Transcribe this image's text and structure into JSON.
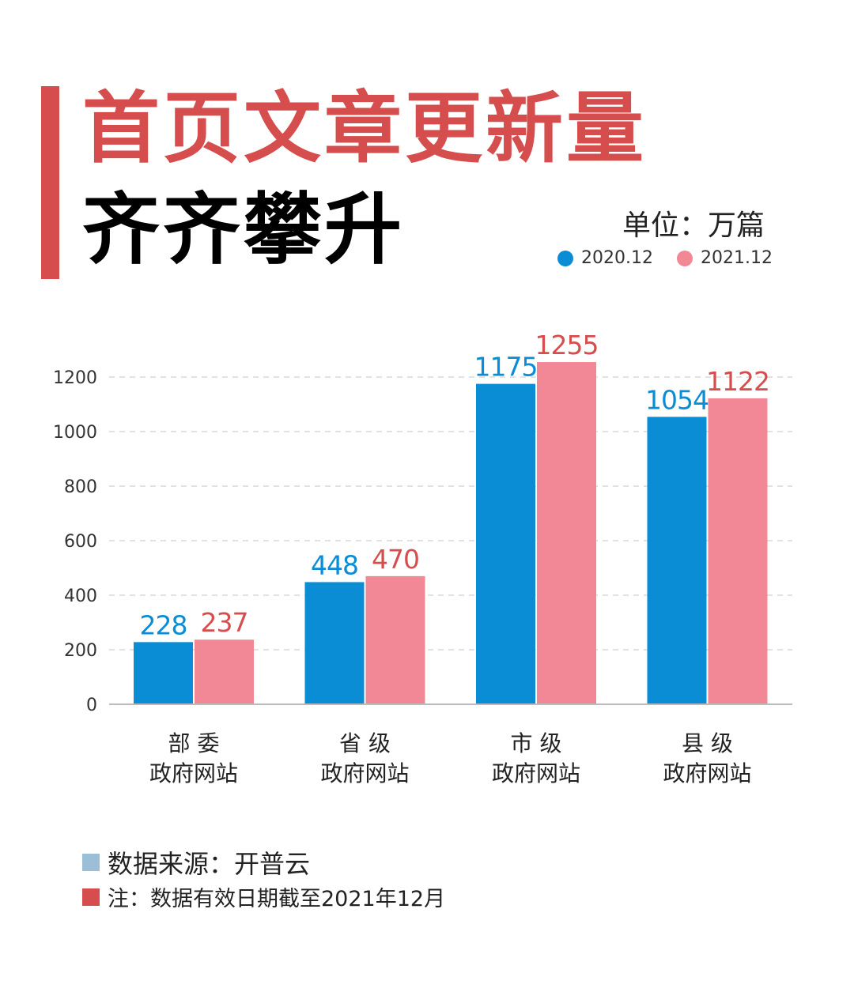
{
  "title_line1": "首页文章更新量",
  "title_line2": "齐齐攀升",
  "unit": "单位：万篇",
  "colors": {
    "accent": "#d64d4d",
    "series1": "#0a8dd4",
    "series2": "#f28896",
    "source_marker": "#9bbfd9"
  },
  "footer": {
    "source": "数据来源：开普云",
    "note": "注：数据有效日期截至2021年12月"
  },
  "chart_data": {
    "type": "bar",
    "categories": [
      [
        "部 委",
        "政府网站"
      ],
      [
        "省 级",
        "政府网站"
      ],
      [
        "市 级",
        "政府网站"
      ],
      [
        "县 级",
        "政府网站"
      ]
    ],
    "series": [
      {
        "name": "2020.12",
        "values": [
          228,
          448,
          1175,
          1054
        ]
      },
      {
        "name": "2021.12",
        "values": [
          237,
          470,
          1255,
          1122
        ]
      }
    ],
    "yticks": [
      0,
      200,
      400,
      600,
      800,
      1000,
      1200
    ],
    "ylim": [
      0,
      1255
    ],
    "grid": true,
    "legend": "top-right"
  }
}
